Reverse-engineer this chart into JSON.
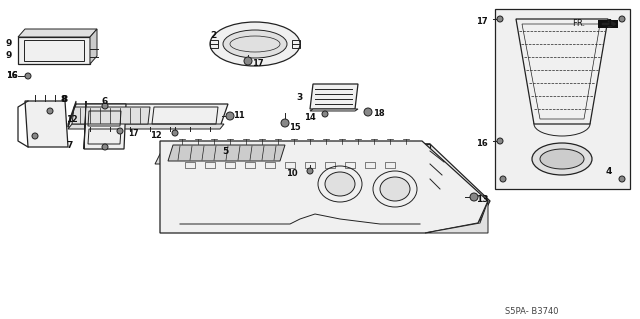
{
  "background_color": "#ffffff",
  "line_color": "#222222",
  "fill_light": "#f0f0f0",
  "fill_mid": "#e0e0e0",
  "fill_dark": "#cccccc",
  "diagram_code": "S5PA- B3740",
  "figsize": [
    6.4,
    3.19
  ],
  "dpi": 100
}
